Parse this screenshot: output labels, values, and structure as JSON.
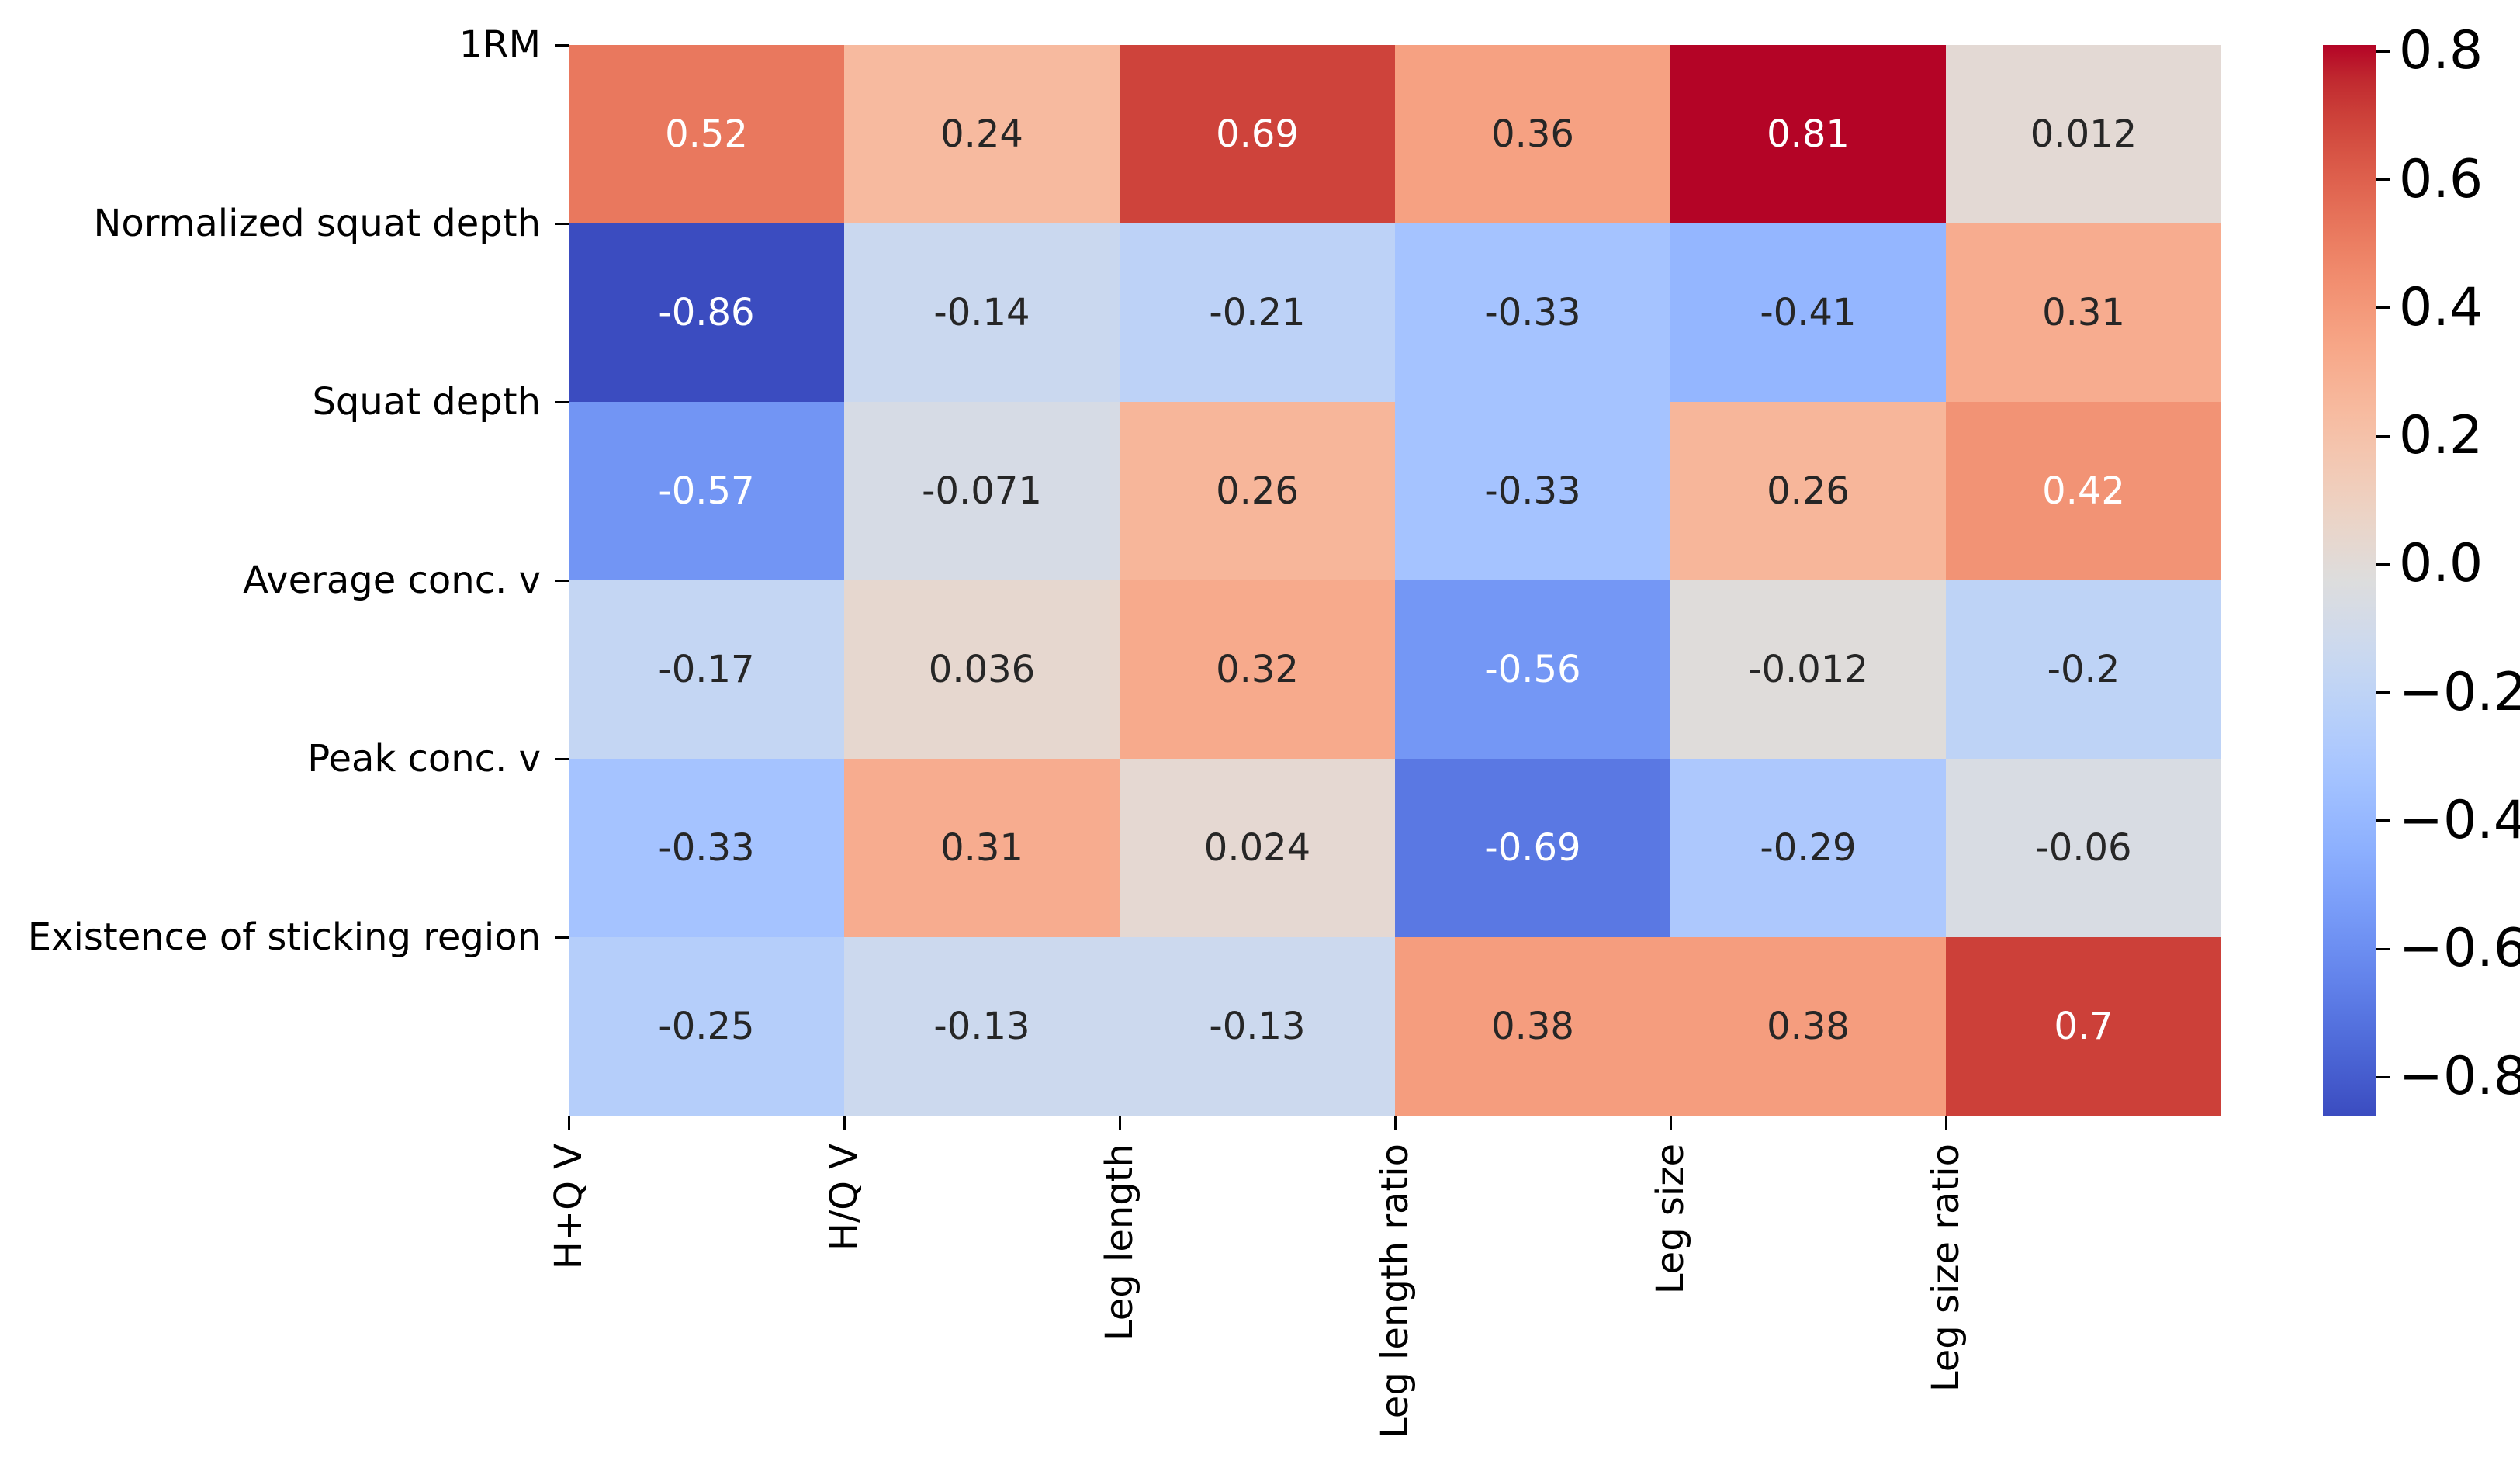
{
  "figure": {
    "background": "#ffffff",
    "title": ""
  },
  "chart_data": {
    "type": "heatmap",
    "title": "",
    "xlabel": "",
    "ylabel": "",
    "rows": [
      "1RM",
      "Normalized squat depth",
      "Squat depth",
      "Average conc. v",
      "Peak conc. v",
      "Existence of sticking region"
    ],
    "columns": [
      "H+Q V",
      "H/Q V",
      "Leg length",
      "Leg length ratio",
      "Leg size",
      "Leg size ratio"
    ],
    "values": [
      [
        0.52,
        0.24,
        0.69,
        0.36,
        0.81,
        0.012
      ],
      [
        -0.86,
        -0.14,
        -0.21,
        -0.33,
        -0.41,
        0.31
      ],
      [
        -0.57,
        -0.071,
        0.26,
        -0.33,
        0.26,
        0.42
      ],
      [
        -0.17,
        0.036,
        0.32,
        -0.56,
        -0.012,
        -0.2
      ],
      [
        -0.33,
        0.31,
        0.024,
        -0.69,
        -0.29,
        -0.06
      ],
      [
        -0.25,
        -0.13,
        -0.13,
        0.38,
        0.38,
        0.7
      ]
    ],
    "cell_labels": [
      [
        "0.52",
        "0.24",
        "0.69",
        "0.36",
        "0.81",
        "0.012"
      ],
      [
        "-0.86",
        "-0.14",
        "-0.21",
        "-0.33",
        "-0.41",
        "0.31"
      ],
      [
        "-0.57",
        "-0.071",
        "0.26",
        "-0.33",
        "0.26",
        "0.42"
      ],
      [
        "-0.17",
        "0.036",
        "0.32",
        "-0.56",
        "-0.012",
        "-0.2"
      ],
      [
        "-0.33",
        "0.31",
        "0.024",
        "-0.69",
        "-0.29",
        "-0.06"
      ],
      [
        "-0.25",
        "-0.13",
        "-0.13",
        "0.38",
        "0.38",
        "0.7"
      ]
    ],
    "vmin": -0.86,
    "vmax": 0.81,
    "grid": "off",
    "legend_position": "right-colorbar",
    "colormap": {
      "name": "coolwarm",
      "stops": [
        "#3B4CC0",
        "#445ACC",
        "#4D68D7",
        "#5775E1",
        "#6282EA",
        "#6C8EF1",
        "#779AF7",
        "#82A5FB",
        "#8DB0FE",
        "#98B9FF",
        "#A3C2FF",
        "#AEC9FD",
        "#B8D0F9",
        "#C2D5F4",
        "#CCD9EE",
        "#D5DBE6",
        "#DDDDDD",
        "#E5D8D1",
        "#ECD3C5",
        "#F1CCB9",
        "#F4C4AD",
        "#F7BBA0",
        "#F7B194",
        "#F7A687",
        "#F49A7B",
        "#F18D6F",
        "#EC7F63",
        "#E57058",
        "#DE604D",
        "#D55042",
        "#CB3E38",
        "#C0282F",
        "#B40426"
      ]
    },
    "colorbar": {
      "tick_values": [
        0.8,
        0.6,
        0.4,
        0.2,
        0.0,
        -0.2,
        -0.4,
        -0.6,
        -0.8
      ],
      "tick_labels": [
        "0.8",
        "0.6",
        "0.4",
        "0.2",
        "0.0",
        "−0.2",
        "−0.4",
        "−0.6",
        "−0.8"
      ]
    },
    "annotation_colors": {
      "light": "#ffffff",
      "dark": "#262626"
    },
    "tick_color": "#000000",
    "label_color": "#000000"
  }
}
